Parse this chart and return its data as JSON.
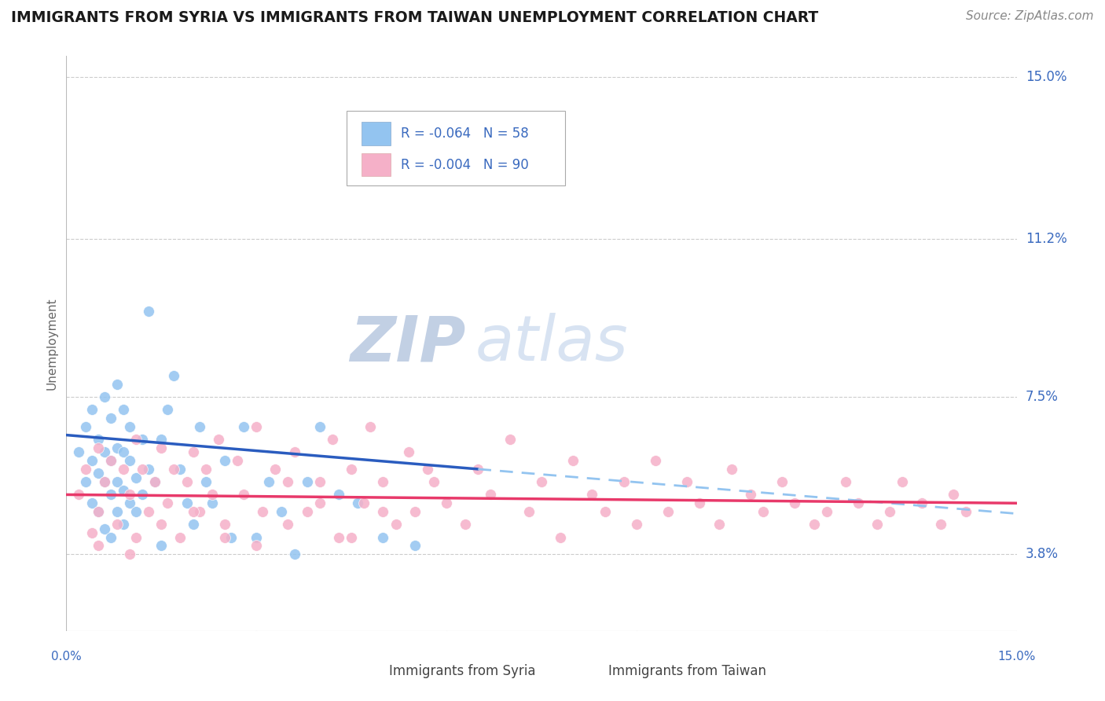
{
  "title": "IMMIGRANTS FROM SYRIA VS IMMIGRANTS FROM TAIWAN UNEMPLOYMENT CORRELATION CHART",
  "source": "Source: ZipAtlas.com",
  "ylabel": "Unemployment",
  "xlim": [
    0.0,
    0.15
  ],
  "ylim": [
    0.02,
    0.155
  ],
  "yticks": [
    0.038,
    0.075,
    0.112,
    0.15
  ],
  "ytick_labels": [
    "3.8%",
    "7.5%",
    "11.2%",
    "15.0%"
  ],
  "xticks": [
    0.0,
    0.03,
    0.06,
    0.09,
    0.12,
    0.15
  ],
  "xtick_labels": [
    "0.0%",
    "",
    "",
    "",
    "",
    "15.0%"
  ],
  "title_color": "#1a1a1a",
  "source_color": "#888888",
  "axis_label_color": "#3a6abf",
  "watermark_zip": "ZIP",
  "watermark_atlas": "atlas",
  "watermark_color": "#ccd9ee",
  "legend_syria_r": "R = -0.064",
  "legend_syria_n": "N = 58",
  "legend_taiwan_r": "R = -0.004",
  "legend_taiwan_n": "N = 90",
  "syria_color": "#93c4f0",
  "taiwan_color": "#f5b0c8",
  "syria_line_color": "#2a5cbf",
  "taiwan_line_color": "#e8396a",
  "trend_dashed_color": "#93c4f0",
  "syria_scatter_x": [
    0.002,
    0.003,
    0.003,
    0.004,
    0.004,
    0.004,
    0.005,
    0.005,
    0.005,
    0.006,
    0.006,
    0.006,
    0.006,
    0.007,
    0.007,
    0.007,
    0.007,
    0.008,
    0.008,
    0.008,
    0.008,
    0.009,
    0.009,
    0.009,
    0.009,
    0.01,
    0.01,
    0.01,
    0.011,
    0.011,
    0.012,
    0.012,
    0.013,
    0.013,
    0.014,
    0.015,
    0.015,
    0.016,
    0.017,
    0.018,
    0.019,
    0.02,
    0.021,
    0.022,
    0.023,
    0.025,
    0.026,
    0.028,
    0.03,
    0.032,
    0.034,
    0.036,
    0.038,
    0.04,
    0.043,
    0.046,
    0.05,
    0.055
  ],
  "syria_scatter_y": [
    0.062,
    0.055,
    0.068,
    0.05,
    0.06,
    0.072,
    0.048,
    0.057,
    0.065,
    0.044,
    0.055,
    0.062,
    0.075,
    0.042,
    0.052,
    0.06,
    0.07,
    0.048,
    0.055,
    0.063,
    0.078,
    0.045,
    0.053,
    0.062,
    0.072,
    0.05,
    0.06,
    0.068,
    0.048,
    0.056,
    0.052,
    0.065,
    0.058,
    0.095,
    0.055,
    0.04,
    0.065,
    0.072,
    0.08,
    0.058,
    0.05,
    0.045,
    0.068,
    0.055,
    0.05,
    0.06,
    0.042,
    0.068,
    0.042,
    0.055,
    0.048,
    0.038,
    0.055,
    0.068,
    0.052,
    0.05,
    0.042,
    0.04
  ],
  "taiwan_scatter_x": [
    0.002,
    0.003,
    0.004,
    0.005,
    0.005,
    0.006,
    0.007,
    0.008,
    0.009,
    0.01,
    0.011,
    0.011,
    0.012,
    0.013,
    0.014,
    0.015,
    0.016,
    0.017,
    0.018,
    0.019,
    0.02,
    0.021,
    0.022,
    0.023,
    0.024,
    0.025,
    0.027,
    0.028,
    0.03,
    0.031,
    0.033,
    0.035,
    0.036,
    0.038,
    0.04,
    0.042,
    0.043,
    0.045,
    0.047,
    0.048,
    0.05,
    0.052,
    0.054,
    0.055,
    0.057,
    0.058,
    0.06,
    0.063,
    0.065,
    0.067,
    0.07,
    0.073,
    0.075,
    0.078,
    0.08,
    0.083,
    0.085,
    0.088,
    0.09,
    0.093,
    0.095,
    0.098,
    0.1,
    0.103,
    0.105,
    0.108,
    0.11,
    0.113,
    0.115,
    0.118,
    0.12,
    0.123,
    0.125,
    0.128,
    0.13,
    0.132,
    0.135,
    0.138,
    0.14,
    0.142,
    0.005,
    0.01,
    0.015,
    0.02,
    0.025,
    0.03,
    0.035,
    0.04,
    0.045,
    0.05
  ],
  "taiwan_scatter_y": [
    0.052,
    0.058,
    0.043,
    0.048,
    0.063,
    0.055,
    0.06,
    0.045,
    0.058,
    0.052,
    0.065,
    0.042,
    0.058,
    0.048,
    0.055,
    0.063,
    0.05,
    0.058,
    0.042,
    0.055,
    0.062,
    0.048,
    0.058,
    0.052,
    0.065,
    0.045,
    0.06,
    0.052,
    0.068,
    0.048,
    0.058,
    0.055,
    0.062,
    0.048,
    0.055,
    0.065,
    0.042,
    0.058,
    0.05,
    0.068,
    0.055,
    0.045,
    0.062,
    0.048,
    0.058,
    0.055,
    0.05,
    0.045,
    0.058,
    0.052,
    0.065,
    0.048,
    0.055,
    0.042,
    0.06,
    0.052,
    0.048,
    0.055,
    0.045,
    0.06,
    0.048,
    0.055,
    0.05,
    0.045,
    0.058,
    0.052,
    0.048,
    0.055,
    0.05,
    0.045,
    0.048,
    0.055,
    0.05,
    0.045,
    0.048,
    0.055,
    0.05,
    0.045,
    0.052,
    0.048,
    0.04,
    0.038,
    0.045,
    0.048,
    0.042,
    0.04,
    0.045,
    0.05,
    0.042,
    0.048
  ],
  "background_color": "#ffffff",
  "grid_color": "#cccccc",
  "figsize": [
    14.06,
    8.92
  ],
  "dpi": 100,
  "syria_trend_x0": 0.0,
  "syria_trend_x1": 0.065,
  "syria_trend_y0": 0.066,
  "syria_trend_y1": 0.058,
  "taiwan_trend_y0": 0.052,
  "taiwan_trend_y1": 0.05
}
